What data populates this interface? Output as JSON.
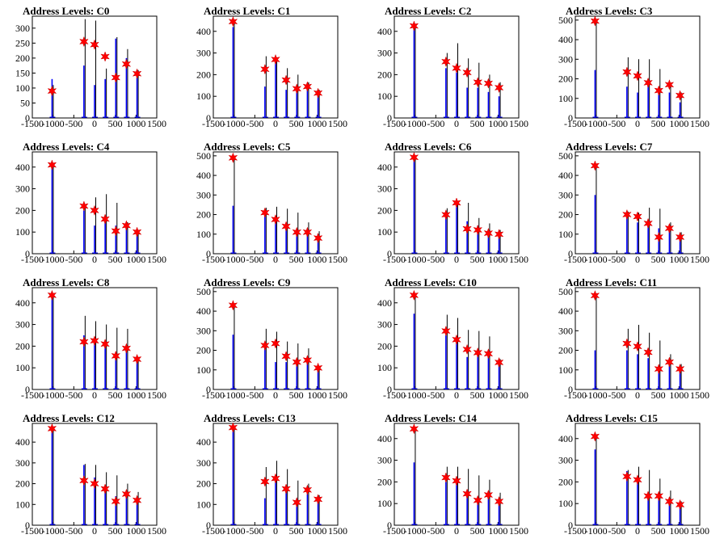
{
  "title_prefix": "Address Levels: ",
  "x_ticks": [
    -1500,
    -1000,
    -500,
    0,
    500,
    1000,
    1500
  ],
  "xlim": [
    -1500,
    1500
  ],
  "colors": {
    "blue": "#0000ff",
    "black": "#000000",
    "star": "#ff0000",
    "star_edge": "#cc0000"
  },
  "chart_data": [
    {
      "type": "bar",
      "title": "C0",
      "ylim": [
        0,
        340
      ],
      "y_ticks": [
        0,
        50,
        100,
        150,
        200,
        250,
        300
      ],
      "x": [
        -1024,
        -256,
        0,
        256,
        512,
        768,
        1024
      ],
      "blue": [
        130,
        175,
        110,
        130,
        265,
        200,
        135
      ],
      "black": [
        110,
        330,
        325,
        165,
        270,
        230,
        160
      ],
      "stars": [
        90,
        255,
        245,
        205,
        135,
        180,
        148
      ]
    },
    {
      "type": "bar",
      "title": "C1",
      "ylim": [
        0,
        470
      ],
      "y_ticks": [
        0,
        100,
        200,
        300,
        400
      ],
      "x": [
        -1024,
        -256,
        0,
        256,
        512,
        768,
        1024
      ],
      "blue": [
        420,
        145,
        270,
        130,
        150,
        135,
        100
      ],
      "black": [
        440,
        285,
        280,
        230,
        200,
        165,
        130
      ],
      "stars": [
        445,
        225,
        270,
        175,
        135,
        145,
        115
      ]
    },
    {
      "type": "bar",
      "title": "C2",
      "ylim": [
        0,
        470
      ],
      "y_ticks": [
        0,
        100,
        200,
        300,
        400
      ],
      "x": [
        -1024,
        -256,
        0,
        256,
        512,
        768,
        1024
      ],
      "blue": [
        420,
        230,
        210,
        140,
        140,
        120,
        100
      ],
      "black": [
        435,
        300,
        345,
        275,
        255,
        200,
        165
      ],
      "stars": [
        425,
        260,
        230,
        210,
        165,
        160,
        140
      ]
    },
    {
      "type": "bar",
      "title": "C3",
      "ylim": [
        0,
        520
      ],
      "y_ticks": [
        0,
        100,
        200,
        300,
        400,
        500
      ],
      "x": [
        -1024,
        -256,
        0,
        256,
        512,
        768,
        1024
      ],
      "blue": [
        245,
        160,
        130,
        170,
        150,
        130,
        80
      ],
      "black": [
        500,
        310,
        300,
        300,
        250,
        180,
        130
      ],
      "stars": [
        495,
        235,
        215,
        180,
        140,
        170,
        115
      ]
    },
    {
      "type": "bar",
      "title": "C4",
      "ylim": [
        0,
        470
      ],
      "y_ticks": [
        0,
        100,
        200,
        300,
        400
      ],
      "x": [
        -1024,
        -256,
        0,
        256,
        512,
        768,
        1024
      ],
      "blue": [
        400,
        200,
        130,
        160,
        130,
        120,
        100
      ],
      "black": [
        410,
        225,
        260,
        275,
        235,
        145,
        110
      ],
      "stars": [
        410,
        220,
        200,
        160,
        105,
        130,
        100
      ]
    },
    {
      "type": "bar",
      "title": "C5",
      "ylim": [
        0,
        520
      ],
      "y_ticks": [
        0,
        100,
        200,
        300,
        400,
        500
      ],
      "x": [
        -1024,
        -256,
        0,
        256,
        512,
        768,
        1024
      ],
      "blue": [
        245,
        210,
        160,
        140,
        120,
        110,
        100
      ],
      "black": [
        500,
        235,
        240,
        230,
        210,
        160,
        115
      ],
      "stars": [
        490,
        210,
        175,
        140,
        110,
        110,
        80
      ]
    },
    {
      "type": "bar",
      "title": "C6",
      "ylim": [
        0,
        470
      ],
      "y_ticks": [
        0,
        100,
        200,
        300,
        400
      ],
      "x": [
        -1024,
        -256,
        0,
        256,
        512,
        768,
        1024
      ],
      "blue": [
        440,
        180,
        230,
        150,
        130,
        100,
        95
      ],
      "black": [
        450,
        210,
        240,
        235,
        165,
        140,
        110
      ],
      "stars": [
        445,
        180,
        235,
        115,
        110,
        95,
        90
      ]
    },
    {
      "type": "bar",
      "title": "C7",
      "ylim": [
        0,
        520
      ],
      "y_ticks": [
        0,
        100,
        200,
        300,
        400,
        500
      ],
      "x": [
        -1024,
        -256,
        0,
        256,
        512,
        768,
        1024
      ],
      "blue": [
        300,
        200,
        160,
        150,
        130,
        120,
        95
      ],
      "black": [
        460,
        215,
        210,
        235,
        230,
        160,
        110
      ],
      "stars": [
        450,
        200,
        190,
        155,
        85,
        130,
        85
      ]
    },
    {
      "type": "bar",
      "title": "C8",
      "ylim": [
        0,
        470
      ],
      "y_ticks": [
        0,
        100,
        200,
        300,
        400
      ],
      "x": [
        -1024,
        -256,
        0,
        256,
        512,
        768,
        1024
      ],
      "blue": [
        430,
        250,
        230,
        200,
        150,
        190,
        140
      ],
      "black": [
        440,
        340,
        315,
        300,
        285,
        280,
        150
      ],
      "stars": [
        435,
        220,
        225,
        210,
        155,
        190,
        140
      ]
    },
    {
      "type": "bar",
      "title": "C9",
      "ylim": [
        0,
        520
      ],
      "y_ticks": [
        0,
        100,
        200,
        300,
        400,
        500
      ],
      "x": [
        -1024,
        -256,
        0,
        256,
        512,
        768,
        1024
      ],
      "blue": [
        280,
        230,
        140,
        140,
        140,
        140,
        120
      ],
      "black": [
        440,
        310,
        295,
        245,
        235,
        210,
        120
      ],
      "stars": [
        430,
        225,
        235,
        170,
        140,
        150,
        110
      ]
    },
    {
      "type": "bar",
      "title": "C10",
      "ylim": [
        0,
        470
      ],
      "y_ticks": [
        0,
        100,
        200,
        300,
        400
      ],
      "x": [
        -1024,
        -256,
        0,
        256,
        512,
        768,
        1024
      ],
      "blue": [
        350,
        250,
        220,
        150,
        160,
        160,
        120
      ],
      "black": [
        440,
        345,
        330,
        275,
        270,
        245,
        140
      ],
      "stars": [
        435,
        270,
        230,
        185,
        170,
        165,
        125
      ]
    },
    {
      "type": "bar",
      "title": "C11",
      "ylim": [
        0,
        520
      ],
      "y_ticks": [
        0,
        100,
        200,
        300,
        400,
        500
      ],
      "x": [
        -1024,
        -256,
        0,
        256,
        512,
        768,
        1024
      ],
      "blue": [
        200,
        200,
        180,
        160,
        120,
        120,
        100
      ],
      "black": [
        490,
        310,
        330,
        290,
        250,
        180,
        130
      ],
      "stars": [
        480,
        235,
        220,
        190,
        105,
        140,
        105
      ]
    },
    {
      "type": "bar",
      "title": "C12",
      "ylim": [
        0,
        490
      ],
      "y_ticks": [
        0,
        100,
        200,
        300,
        400
      ],
      "x": [
        -1024,
        -256,
        0,
        256,
        512,
        768,
        1024
      ],
      "blue": [
        470,
        290,
        230,
        160,
        140,
        150,
        125
      ],
      "black": [
        475,
        295,
        290,
        255,
        240,
        200,
        160
      ],
      "stars": [
        465,
        215,
        200,
        175,
        115,
        150,
        120
      ]
    },
    {
      "type": "bar",
      "title": "C13",
      "ylim": [
        0,
        490
      ],
      "y_ticks": [
        0,
        100,
        200,
        300,
        400
      ],
      "x": [
        -1024,
        -256,
        0,
        256,
        512,
        768,
        1024
      ],
      "blue": [
        470,
        130,
        240,
        160,
        130,
        150,
        120
      ],
      "black": [
        475,
        280,
        310,
        270,
        215,
        200,
        145
      ],
      "stars": [
        470,
        210,
        225,
        175,
        110,
        170,
        125
      ]
    },
    {
      "type": "bar",
      "title": "C14",
      "ylim": [
        0,
        470
      ],
      "y_ticks": [
        0,
        100,
        200,
        300,
        400
      ],
      "x": [
        -1024,
        -256,
        0,
        256,
        512,
        768,
        1024
      ],
      "blue": [
        290,
        200,
        220,
        130,
        110,
        140,
        100
      ],
      "black": [
        440,
        270,
        270,
        260,
        230,
        210,
        150
      ],
      "stars": [
        445,
        220,
        205,
        145,
        115,
        140,
        110
      ]
    },
    {
      "type": "bar",
      "title": "C15",
      "ylim": [
        0,
        470
      ],
      "y_ticks": [
        0,
        100,
        200,
        300,
        400
      ],
      "x": [
        -1024,
        -256,
        0,
        256,
        512,
        768,
        1024
      ],
      "blue": [
        350,
        250,
        220,
        140,
        130,
        100,
        95
      ],
      "black": [
        415,
        255,
        270,
        255,
        215,
        160,
        110
      ],
      "stars": [
        410,
        225,
        210,
        135,
        135,
        110,
        95
      ]
    }
  ]
}
